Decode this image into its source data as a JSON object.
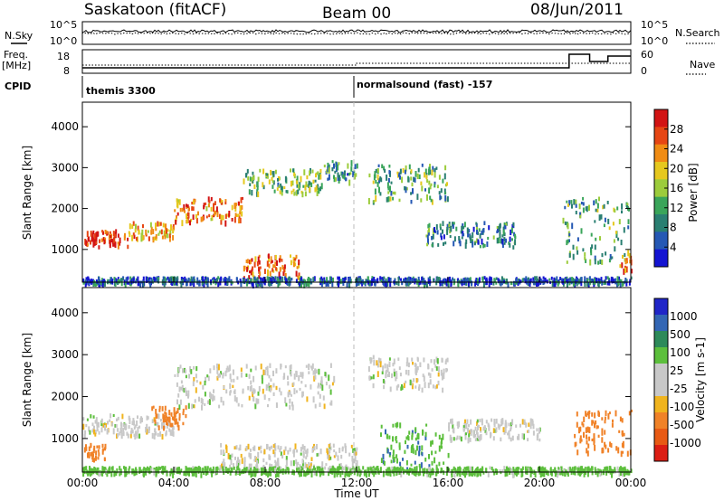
{
  "header": {
    "title": "Saskatoon (fitACF)",
    "beam": "Beam 00",
    "date": "08/Jun/2011"
  },
  "top_panels": {
    "nsky_label": "N.Sky",
    "nsky_ticks": [
      "10^5",
      "10^0"
    ],
    "nsearch_label": "N.Search",
    "freq_label_1": "Freq.",
    "freq_label_2": "[MHz]",
    "freq_ticks": [
      "18",
      "8"
    ],
    "nave_label": "Nave",
    "nave_ticks": [
      "60",
      "0"
    ],
    "cpid_label": "CPID",
    "cpid_1": "themis 3300",
    "cpid_2": "normalsound (fast) -157"
  },
  "colors": {
    "power_scale": [
      "#1414d2",
      "#2558b4",
      "#2a7f72",
      "#3aa55a",
      "#9ccc3c",
      "#e6c81e",
      "#f08c14",
      "#e64614",
      "#d21414"
    ],
    "velocity_scale": [
      "#2026c8",
      "#3366b4",
      "#2d8a5a",
      "#5cbf3c",
      "#c8c8c8",
      "#c8c8c8",
      "#f0b41e",
      "#f08228",
      "#e85a14",
      "#dc1e14"
    ]
  },
  "chart_data": [
    {
      "type": "heatmap",
      "panel": "power",
      "ylabel": "Slant Range [km]",
      "yticks": [
        "1000",
        "2000",
        "3000",
        "4000"
      ],
      "ylim": [
        200,
        4600
      ],
      "xlim_hours": [
        0,
        24
      ],
      "colorbar_label": "Power [dB]",
      "colorbar_ticks": [
        "4",
        "8",
        "12",
        "16",
        "20",
        "24",
        "28"
      ],
      "colorbar_range": [
        0,
        32
      ],
      "echo_regions": [
        {
          "t_start": 0.0,
          "t_end": 2.0,
          "r_low": 1100,
          "r_high": 1500,
          "level": 29
        },
        {
          "t_start": 2.0,
          "t_end": 4.0,
          "r_low": 1300,
          "r_high": 1700,
          "level": 22
        },
        {
          "t_start": 4.0,
          "t_end": 7.0,
          "r_low": 1700,
          "r_high": 2300,
          "level": 24
        },
        {
          "t_start": 7.0,
          "t_end": 10.5,
          "r_low": 2400,
          "r_high": 3000,
          "level": 14
        },
        {
          "t_start": 10.5,
          "t_end": 12.0,
          "r_low": 2700,
          "r_high": 3200,
          "level": 10
        },
        {
          "t_start": 7.0,
          "t_end": 9.5,
          "r_low": 300,
          "r_high": 900,
          "level": 26
        },
        {
          "t_start": 12.5,
          "t_end": 16.0,
          "r_low": 2200,
          "r_high": 3100,
          "level": 12
        },
        {
          "t_start": 15.0,
          "t_end": 19.0,
          "r_low": 1100,
          "r_high": 1700,
          "level": 8
        },
        {
          "t_start": 21.0,
          "t_end": 24.0,
          "r_low": 700,
          "r_high": 2300,
          "level": 12
        },
        {
          "t_start": 23.5,
          "t_end": 24.0,
          "r_low": 500,
          "r_high": 1000,
          "level": 25
        },
        {
          "t_start": 0.0,
          "t_end": 24.0,
          "r_low": 200,
          "r_high": 350,
          "level": 6
        }
      ]
    },
    {
      "type": "heatmap",
      "panel": "velocity",
      "ylabel": "Slant Range [km]",
      "yticks": [
        "1000",
        "2000",
        "3000",
        "4000"
      ],
      "ylim": [
        200,
        4600
      ],
      "xlim_hours": [
        0,
        24
      ],
      "xticks": [
        "00:00",
        "04:00",
        "08:00",
        "12:00",
        "16:00",
        "20:00",
        "00:00"
      ],
      "xlabel": "Time UT",
      "colorbar_label": "Velocity [m s-1]",
      "colorbar_ticks": [
        "1000",
        "500",
        "100",
        "25",
        "-25",
        "-100",
        "-500",
        "-1000"
      ],
      "echo_regions": [
        {
          "t_start": 0.0,
          "t_end": 4.0,
          "r_low": 1100,
          "r_high": 1600,
          "velocity": 0
        },
        {
          "t_start": 3.0,
          "t_end": 4.5,
          "r_low": 1300,
          "r_high": 1800,
          "velocity": -150
        },
        {
          "t_start": 4.0,
          "t_end": 11.0,
          "r_low": 1800,
          "r_high": 2800,
          "velocity": 0
        },
        {
          "t_start": 6.0,
          "t_end": 12.0,
          "r_low": 300,
          "r_high": 900,
          "velocity": 0
        },
        {
          "t_start": 12.5,
          "t_end": 16.0,
          "r_low": 2200,
          "r_high": 3000,
          "velocity": 0
        },
        {
          "t_start": 13.0,
          "t_end": 16.0,
          "r_low": 300,
          "r_high": 1400,
          "velocity": 80
        },
        {
          "t_start": 16.0,
          "t_end": 20.0,
          "r_low": 1000,
          "r_high": 1500,
          "velocity": 0
        },
        {
          "t_start": 21.5,
          "t_end": 24.0,
          "r_low": 700,
          "r_high": 1700,
          "velocity": -300
        },
        {
          "t_start": 0.0,
          "t_end": 1.0,
          "r_low": 500,
          "r_high": 900,
          "velocity": -200
        },
        {
          "t_start": 0.0,
          "t_end": 24.0,
          "r_low": 200,
          "r_high": 350,
          "velocity": 50
        }
      ]
    }
  ]
}
